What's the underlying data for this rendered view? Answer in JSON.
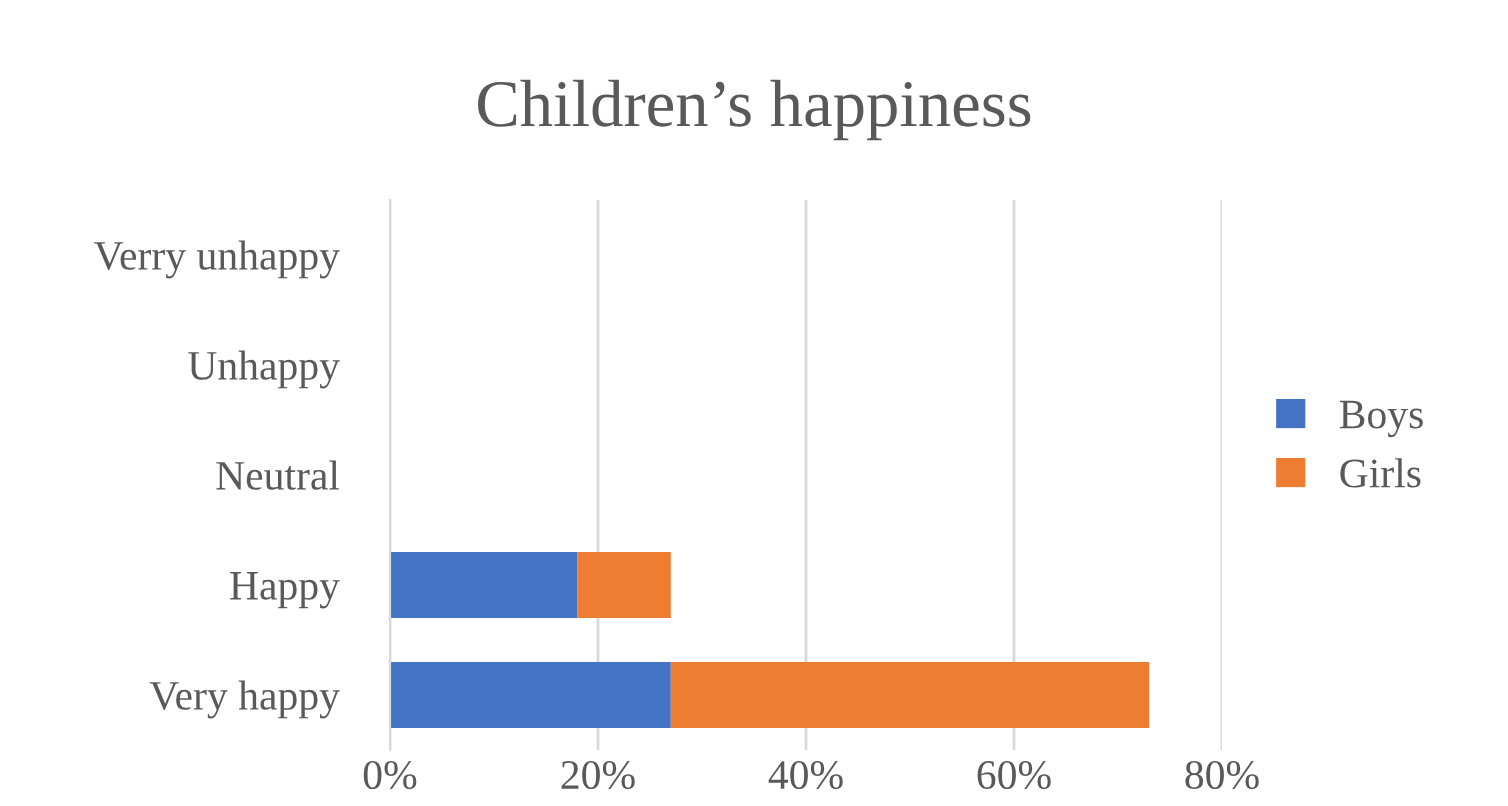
{
  "chart_data": {
    "type": "bar",
    "orientation": "horizontal",
    "stacked": true,
    "title": "Children’s happiness",
    "categories": [
      "Verry unhappy",
      "Unhappy",
      "Neutral",
      "Happy",
      "Very happy"
    ],
    "series": [
      {
        "name": "Boys",
        "color": "#4472c4",
        "values": [
          0,
          0,
          0,
          18,
          27
        ]
      },
      {
        "name": "Girls",
        "color": "#ed7d31",
        "values": [
          0,
          0,
          0,
          9,
          46
        ]
      }
    ],
    "xlim": [
      0,
      80
    ],
    "xticks": [
      {
        "value": 0,
        "label": "0%"
      },
      {
        "value": 20,
        "label": "20%"
      },
      {
        "value": 40,
        "label": "40%"
      },
      {
        "value": 60,
        "label": "60%"
      },
      {
        "value": 80,
        "label": "80%"
      }
    ],
    "grid": "x",
    "legend": "right"
  }
}
